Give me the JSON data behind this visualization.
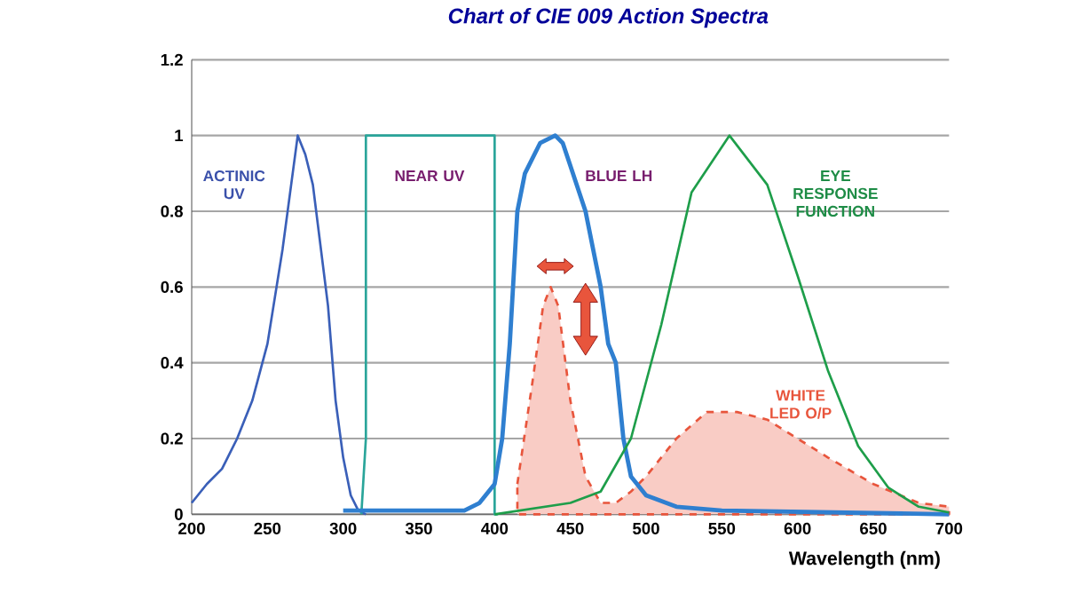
{
  "chart_data": {
    "type": "line",
    "title": "Chart of CIE 009 Action Spectra",
    "xlabel": "Wavelength (nm)",
    "xlim": [
      200,
      700
    ],
    "xticks": [
      200,
      250,
      300,
      350,
      400,
      450,
      500,
      550,
      600,
      650,
      700
    ],
    "ylim": [
      0,
      1.2
    ],
    "yticks": [
      0,
      0.2,
      0.4,
      0.6,
      0.8,
      1,
      1.2
    ],
    "grid": "y",
    "series": [
      {
        "name": "ACTINIC UV",
        "color": "#3a5fb8",
        "x": [
          200,
          210,
          220,
          230,
          240,
          250,
          260,
          265,
          270,
          275,
          280,
          290,
          295,
          300,
          305,
          310,
          315
        ],
        "values": [
          0.03,
          0.08,
          0.12,
          0.2,
          0.3,
          0.45,
          0.7,
          0.85,
          1.0,
          0.95,
          0.87,
          0.55,
          0.3,
          0.15,
          0.05,
          0.01,
          0
        ]
      },
      {
        "name": "NEAR UV",
        "color": "#2aa59a",
        "x": [
          312,
          315,
          315,
          400,
          400,
          402
        ],
        "values": [
          0,
          0.2,
          1,
          1,
          0,
          0
        ]
      },
      {
        "name": "BLUE LH",
        "color": "#2f7fd0",
        "x": [
          300,
          380,
          390,
          400,
          405,
          410,
          415,
          420,
          430,
          440,
          445,
          450,
          460,
          470,
          475,
          480,
          485,
          490,
          500,
          520,
          550,
          700
        ],
        "values": [
          0.01,
          0.01,
          0.03,
          0.08,
          0.2,
          0.45,
          0.8,
          0.9,
          0.98,
          1.0,
          0.98,
          0.92,
          0.8,
          0.6,
          0.45,
          0.4,
          0.2,
          0.1,
          0.05,
          0.02,
          0.01,
          0
        ]
      },
      {
        "name": "EYE RESPONSE FUNCTION",
        "color": "#1e9e4a",
        "x": [
          400,
          450,
          470,
          490,
          510,
          530,
          555,
          580,
          600,
          620,
          640,
          660,
          680,
          700
        ],
        "values": [
          0,
          0.03,
          0.06,
          0.2,
          0.5,
          0.85,
          1.0,
          0.87,
          0.63,
          0.38,
          0.18,
          0.07,
          0.02,
          0.005
        ]
      },
      {
        "name": "WHITE LED O/P",
        "type": "area",
        "line_style": "dashed",
        "color": "#e8553c",
        "x": [
          415,
          425,
          432,
          437,
          442,
          450,
          460,
          470,
          480,
          490,
          500,
          520,
          540,
          560,
          580,
          600,
          620,
          650,
          680,
          700
        ],
        "values": [
          0.08,
          0.35,
          0.55,
          0.6,
          0.55,
          0.3,
          0.1,
          0.03,
          0.03,
          0.06,
          0.1,
          0.2,
          0.27,
          0.27,
          0.25,
          0.2,
          0.15,
          0.08,
          0.03,
          0.02
        ]
      }
    ]
  }
}
